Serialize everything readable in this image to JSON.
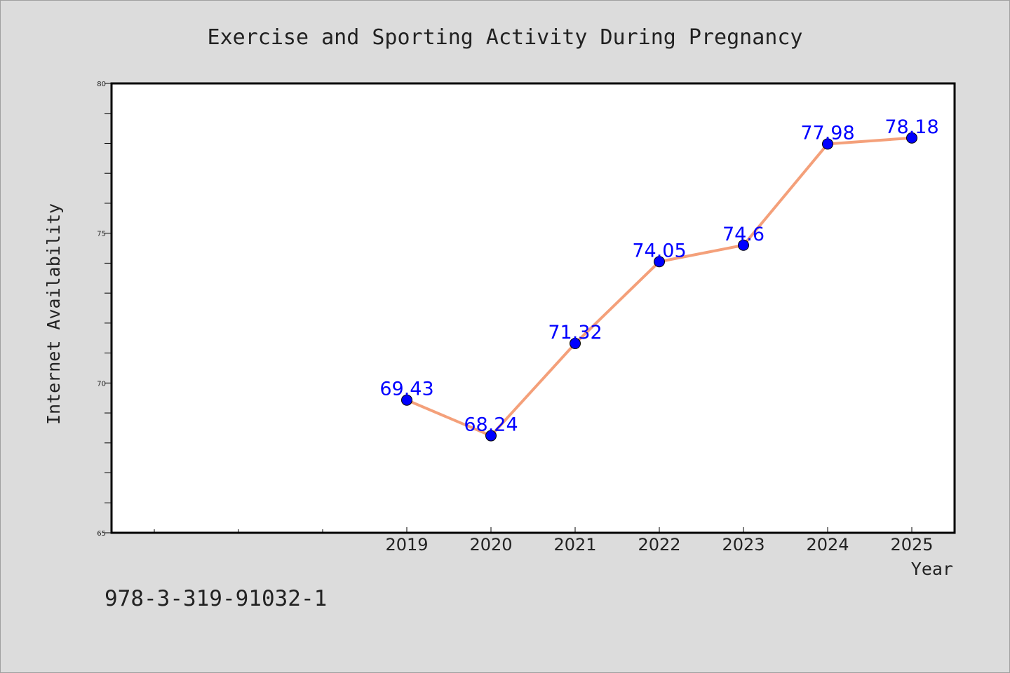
{
  "chart_data": {
    "type": "line",
    "title": "Exercise and Sporting Activity During Pregnancy",
    "xlabel": "Year",
    "ylabel": "Internet Availability",
    "categories": [
      "2019",
      "2020",
      "2021",
      "2022",
      "2023",
      "2024",
      "2025"
    ],
    "series": [
      {
        "values": [
          69.43,
          68.24,
          71.32,
          74.05,
          74.6,
          77.98,
          78.18
        ],
        "labels": [
          "69.43",
          "68.24",
          "71.32",
          "74.05",
          "74.6",
          "77.98",
          "78.18"
        ]
      }
    ],
    "ylim": [
      65,
      80
    ],
    "yticks": [
      "65",
      "70",
      "75",
      "80"
    ],
    "grid": false,
    "legend": "none",
    "colors": {
      "line": "#f4a07a",
      "marker": "#0000ff",
      "data_label": "#0000ff",
      "background": "#dcdcdc",
      "plot_area": "#ffffff"
    }
  },
  "footer": {
    "isbn": "978-3-319-91032-1"
  }
}
